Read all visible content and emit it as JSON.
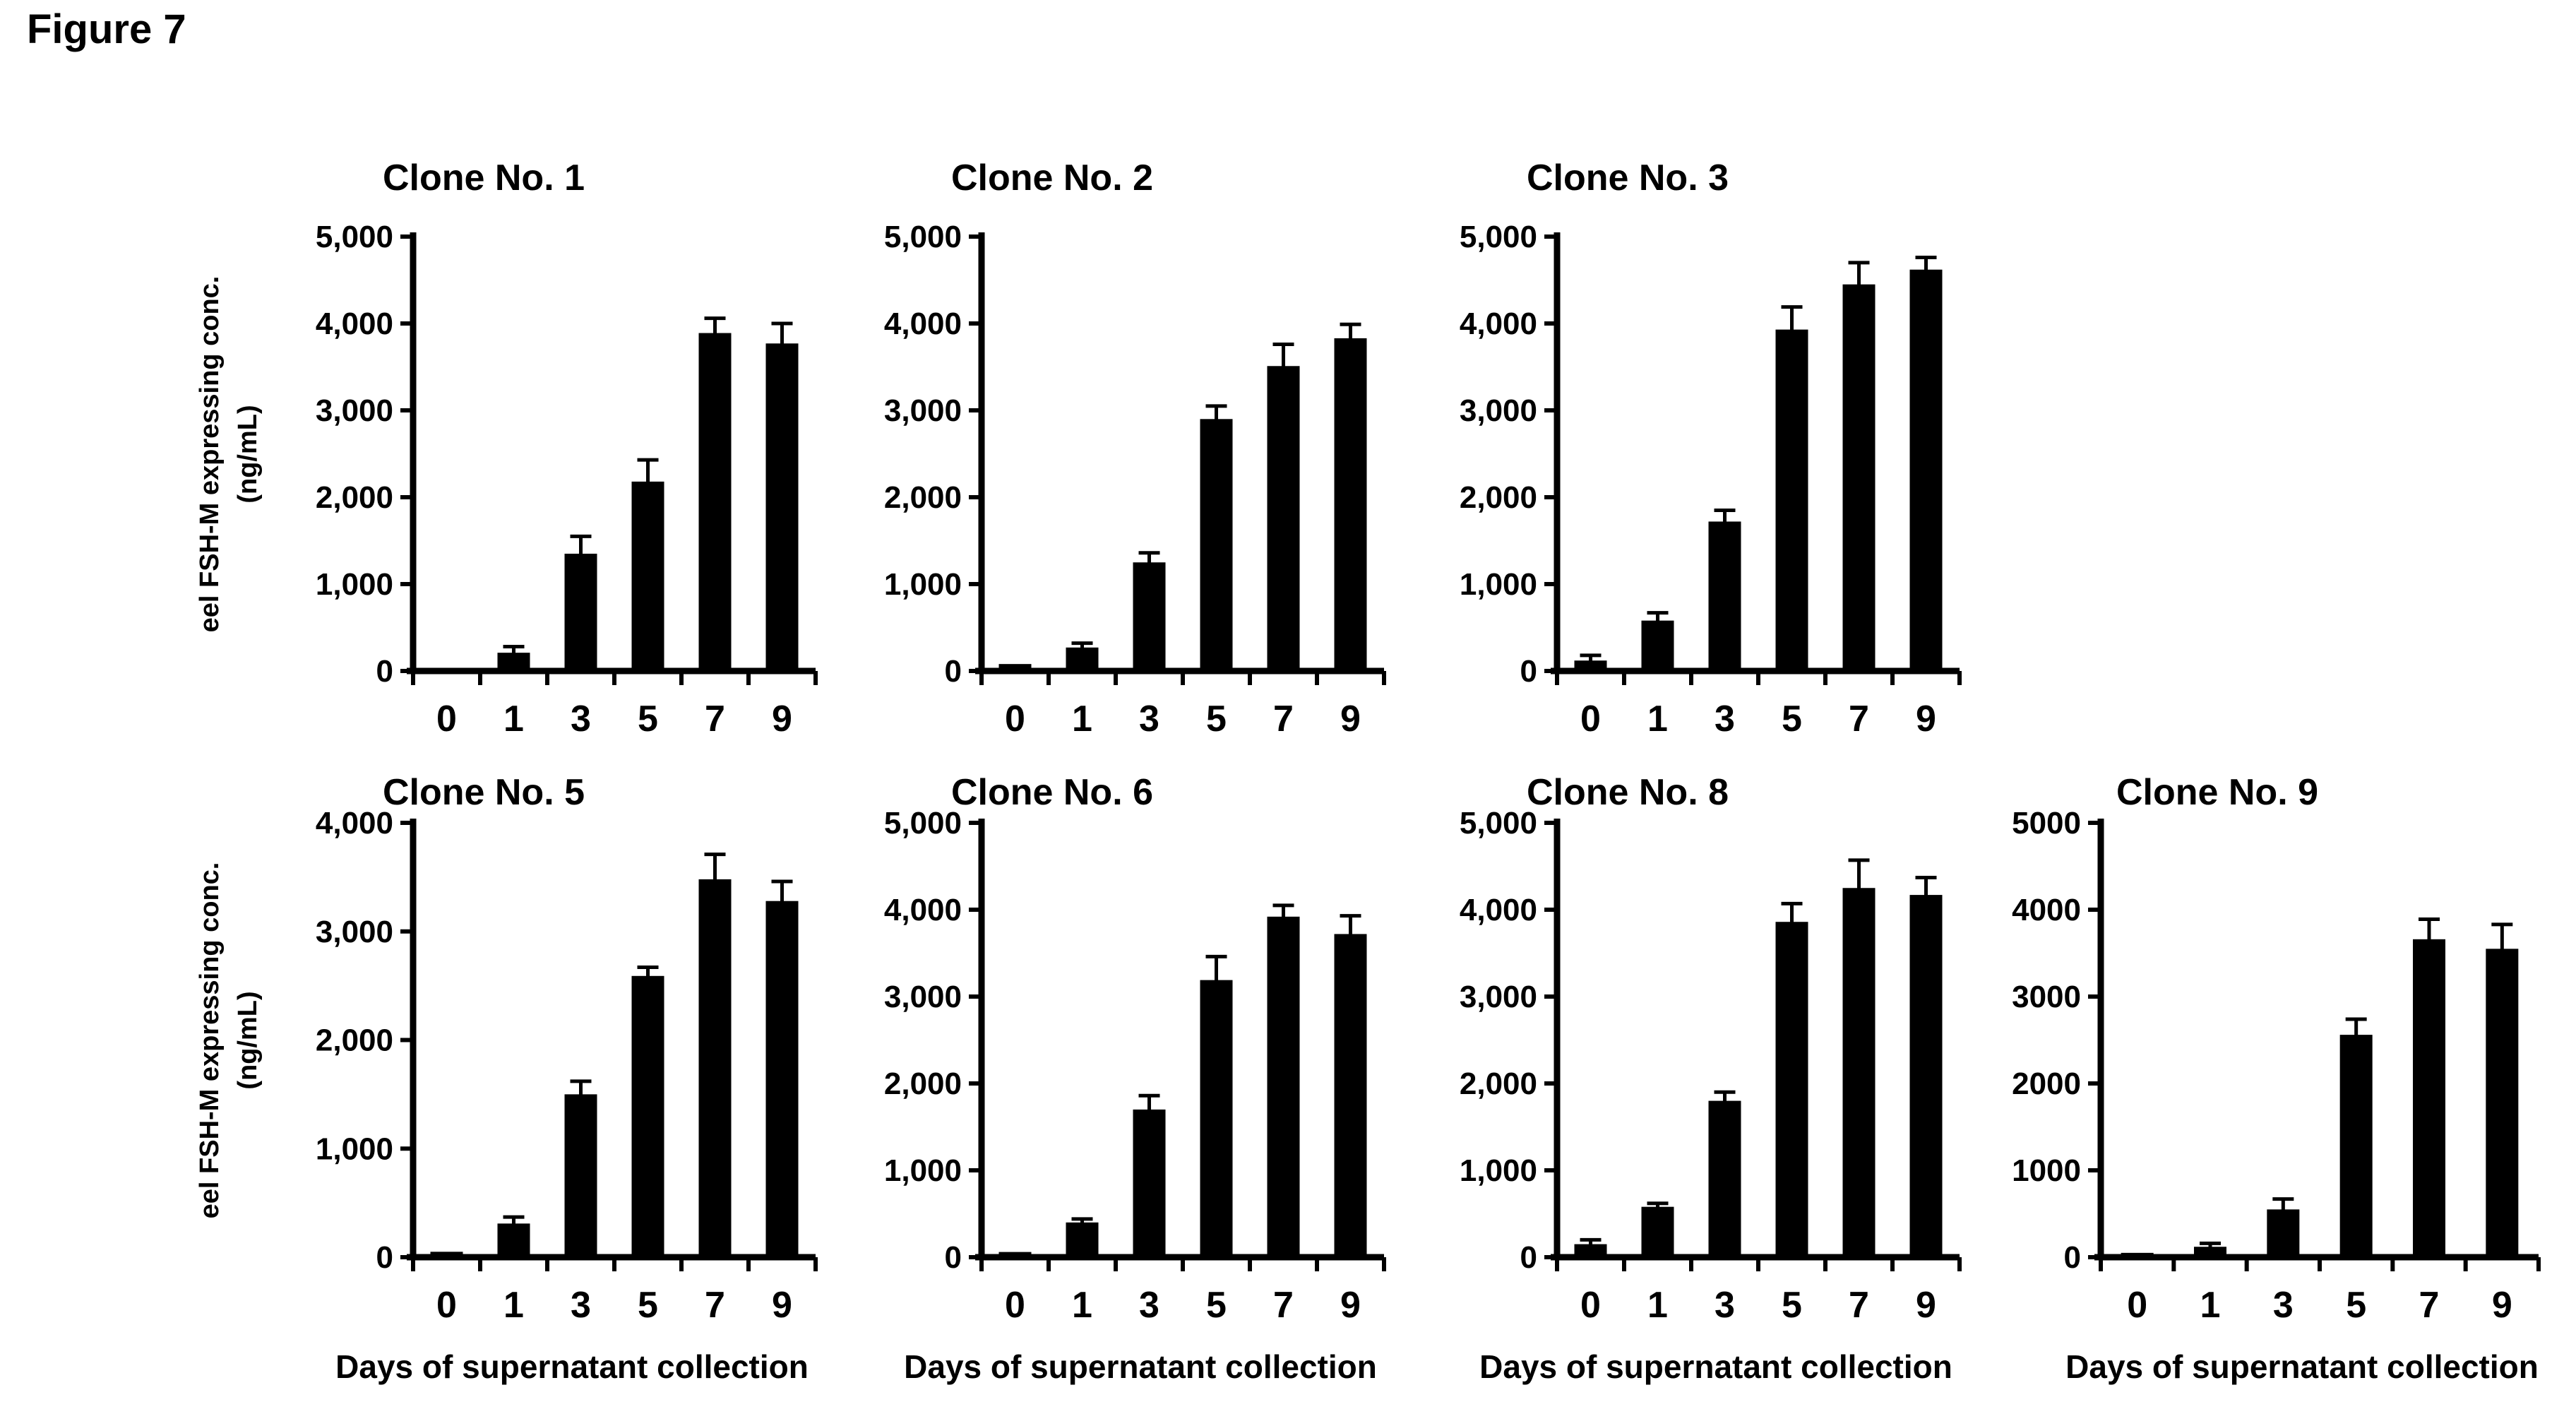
{
  "figure_label": "Figure 7",
  "axes": {
    "ylabel_line1": "eel FSH-M expressing conc.",
    "ylabel_line2": "(ng/mL)",
    "xlabel": "Days of supernatant collection"
  },
  "style": {
    "bar_color": "#000000",
    "axis_color": "#000000",
    "background": "#ffffff",
    "grid": false,
    "legend": "none"
  },
  "chart_data": [
    {
      "type": "bar",
      "title": "Clone No. 1",
      "row": 0,
      "col": 0,
      "categories": [
        "0",
        "1",
        "3",
        "5",
        "7",
        "9"
      ],
      "values": [
        30,
        210,
        1350,
        2180,
        3890,
        3770
      ],
      "errors": [
        0,
        70,
        200,
        250,
        170,
        230
      ],
      "ylim": [
        0,
        5000
      ],
      "ytick_step": 1000,
      "ytick_labels": [
        "0",
        "1,000",
        "2,000",
        "3,000",
        "4,000",
        "5,000"
      ],
      "show_ylabel": true,
      "show_xlabel": false
    },
    {
      "type": "bar",
      "title": "Clone No. 2",
      "row": 0,
      "col": 1,
      "categories": [
        "0",
        "1",
        "3",
        "5",
        "7",
        "9"
      ],
      "values": [
        80,
        270,
        1250,
        2900,
        3510,
        3830
      ],
      "errors": [
        0,
        50,
        110,
        150,
        250,
        160
      ],
      "ylim": [
        0,
        5000
      ],
      "ytick_step": 1000,
      "ytick_labels": [
        "0",
        "1,000",
        "2,000",
        "3,000",
        "4,000",
        "5,000"
      ],
      "show_ylabel": false,
      "show_xlabel": false
    },
    {
      "type": "bar",
      "title": "Clone No. 3",
      "row": 0,
      "col": 2,
      "categories": [
        "0",
        "1",
        "3",
        "5",
        "7",
        "9"
      ],
      "values": [
        120,
        580,
        1720,
        3930,
        4450,
        4620
      ],
      "errors": [
        60,
        90,
        130,
        260,
        250,
        140
      ],
      "ylim": [
        0,
        5000
      ],
      "ytick_step": 1000,
      "ytick_labels": [
        "0",
        "1,000",
        "2,000",
        "3,000",
        "4,000",
        "5,000"
      ],
      "show_ylabel": false,
      "show_xlabel": false
    },
    {
      "type": "bar",
      "title": "Clone No. 5",
      "row": 1,
      "col": 0,
      "categories": [
        "0",
        "1",
        "3",
        "5",
        "7",
        "9"
      ],
      "values": [
        50,
        310,
        1500,
        2590,
        3480,
        3280
      ],
      "errors": [
        0,
        60,
        120,
        80,
        230,
        180
      ],
      "ylim": [
        0,
        4000
      ],
      "ytick_step": 1000,
      "ytick_labels": [
        "0",
        "1,000",
        "2,000",
        "3,000",
        "4,000"
      ],
      "show_ylabel": true,
      "show_xlabel": true
    },
    {
      "type": "bar",
      "title": "Clone No. 6",
      "row": 1,
      "col": 1,
      "categories": [
        "0",
        "1",
        "3",
        "5",
        "7",
        "9"
      ],
      "values": [
        60,
        400,
        1700,
        3190,
        3920,
        3720
      ],
      "errors": [
        0,
        40,
        160,
        270,
        130,
        210
      ],
      "ylim": [
        0,
        5000
      ],
      "ytick_step": 1000,
      "ytick_labels": [
        "0",
        "1,000",
        "2,000",
        "3,000",
        "4,000",
        "5,000"
      ],
      "show_ylabel": false,
      "show_xlabel": true
    },
    {
      "type": "bar",
      "title": "Clone No. 8",
      "row": 1,
      "col": 2,
      "categories": [
        "0",
        "1",
        "3",
        "5",
        "7",
        "9"
      ],
      "values": [
        150,
        580,
        1800,
        3860,
        4250,
        4170
      ],
      "errors": [
        50,
        40,
        100,
        210,
        320,
        200
      ],
      "ylim": [
        0,
        5000
      ],
      "ytick_step": 1000,
      "ytick_labels": [
        "0",
        "1,000",
        "2,000",
        "3,000",
        "4,000",
        "5,000"
      ],
      "show_ylabel": false,
      "show_xlabel": true
    },
    {
      "type": "bar",
      "title": "Clone No. 9",
      "row": 1,
      "col": 3,
      "categories": [
        "0",
        "1",
        "3",
        "5",
        "7",
        "9"
      ],
      "values": [
        50,
        120,
        550,
        2560,
        3660,
        3550
      ],
      "errors": [
        0,
        40,
        120,
        180,
        230,
        280
      ],
      "ylim": [
        0,
        5000
      ],
      "ytick_step": 1000,
      "ytick_labels": [
        "0",
        "1000",
        "2000",
        "3000",
        "4000",
        "5000"
      ],
      "show_ylabel": false,
      "show_xlabel": true
    }
  ]
}
